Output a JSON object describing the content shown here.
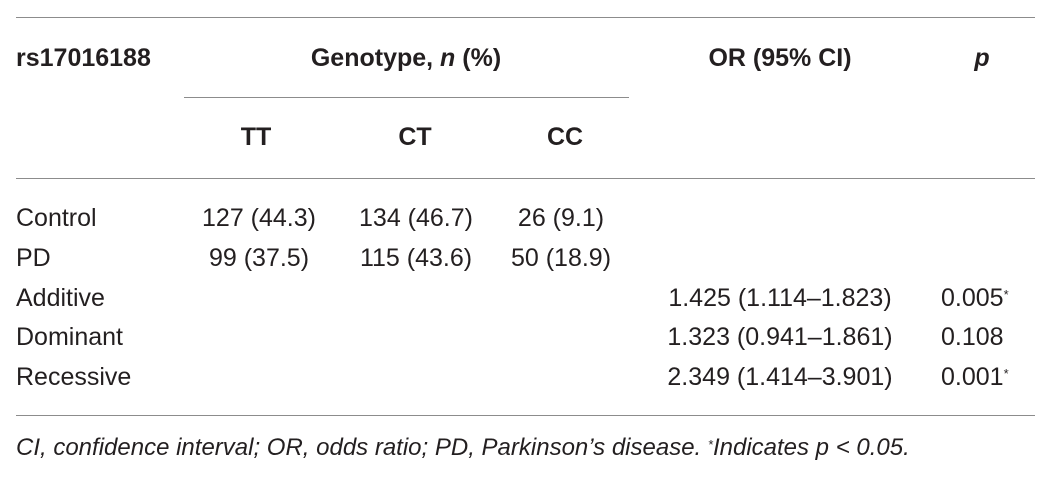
{
  "table": {
    "header": {
      "snp": "rs17016188",
      "genotype_prefix": "Genotype, ",
      "genotype_n": "n",
      "genotype_suffix": " (%)",
      "or": "OR (95% CI)",
      "p": "p",
      "sub": [
        "TT",
        "CT",
        "CC"
      ]
    },
    "rows": [
      {
        "label": "Control",
        "tt": "127 (44.3)",
        "ct": "134 (46.7)",
        "cc": "26 (9.1)",
        "or": "",
        "p": "",
        "sig": ""
      },
      {
        "label": "PD",
        "tt": "99 (37.5)",
        "ct": "115 (43.6)",
        "cc": "50 (18.9)",
        "or": "",
        "p": "",
        "sig": ""
      },
      {
        "label": "Additive",
        "tt": "",
        "ct": "",
        "cc": "",
        "or": "1.425 (1.114–1.823)",
        "p": "0.005",
        "sig": "*"
      },
      {
        "label": "Dominant",
        "tt": "",
        "ct": "",
        "cc": "",
        "or": "1.323 (0.941–1.861)",
        "p": "0.108",
        "sig": ""
      },
      {
        "label": "Recessive",
        "tt": "",
        "ct": "",
        "cc": "",
        "or": "2.349 (1.414–3.901)",
        "p": "0.001",
        "sig": "*"
      }
    ],
    "footnote": {
      "text": "CI, confidence interval; OR, odds ratio; PD, Parkinson’s disease. ",
      "star": "*",
      "text2": "Indicates p < 0.05."
    }
  }
}
